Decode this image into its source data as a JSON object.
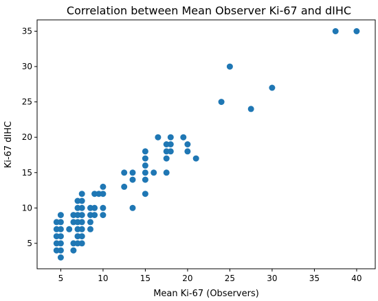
{
  "chart_data": {
    "type": "scatter",
    "title": "Correlation between Mean Observer Ki-67 and dIHC",
    "xlabel": "Mean Ki-67 (Observers)",
    "ylabel": "Ki-67 dIHC",
    "xlim": [
      2.2,
      42.2
    ],
    "ylim": [
      1.4,
      36.6
    ],
    "xticks": [
      5,
      10,
      15,
      20,
      25,
      30,
      35,
      40
    ],
    "yticks": [
      5,
      10,
      15,
      20,
      25,
      30,
      35
    ],
    "grid": false,
    "marker_color": "#1f77b4",
    "series": [
      {
        "x": [
          4.5,
          4.5,
          4.5,
          4.5,
          4.5,
          5,
          5,
          5,
          5,
          5,
          5,
          5,
          6,
          6.5,
          6.5,
          6.5,
          6.5,
          7,
          7,
          7,
          7,
          7,
          7,
          7,
          7.5,
          7.5,
          7.5,
          7.5,
          7.5,
          7.5,
          7.5,
          7.5,
          8.5,
          8.5,
          8.5,
          8.5,
          9,
          9,
          9,
          9.5,
          10,
          10,
          10,
          10,
          12.5,
          12.5,
          13.5,
          13.5,
          13.5,
          15,
          15,
          15,
          15,
          15,
          15,
          16,
          16.5,
          17.5,
          17.5,
          17.5,
          17.5,
          18,
          18,
          18,
          19.5,
          20,
          20,
          21,
          24,
          25,
          27.5,
          30,
          37.5,
          40
        ],
        "y": [
          4,
          5,
          6,
          7,
          8,
          3,
          4,
          5,
          6,
          7,
          8,
          9,
          7,
          4,
          5,
          8,
          9,
          5,
          6,
          7,
          8,
          9,
          10,
          11,
          5,
          6,
          7,
          8,
          9,
          10,
          11,
          12,
          7,
          8,
          9,
          10,
          9,
          10,
          12,
          12,
          9,
          10,
          12,
          13,
          13,
          15,
          10,
          14,
          15,
          12,
          14,
          15,
          16,
          17,
          18,
          15,
          20,
          15,
          17,
          18,
          19,
          18,
          19,
          20,
          20,
          18,
          19,
          17,
          25,
          30,
          24,
          27,
          35,
          35
        ]
      }
    ]
  }
}
